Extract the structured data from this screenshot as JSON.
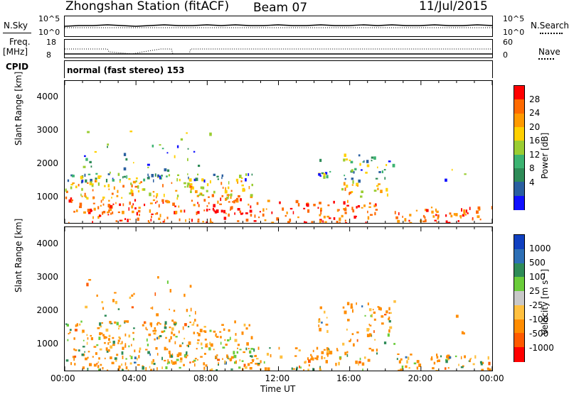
{
  "header": {
    "station": "Zhongshan Station (fitACF)",
    "beam": "Beam 07",
    "date": "11/Jul/2015"
  },
  "top_panels": {
    "nsky_label": "N.Sky",
    "nsky_ticks": [
      "10^5",
      "10^0"
    ],
    "nsearch_label": "N.Search",
    "nsearch_ticks": [
      "10^5",
      "10^0"
    ],
    "freq_label_1": "Freq.",
    "freq_label_2": "[MHz]",
    "freq_ticks": [
      "18",
      "8"
    ],
    "nave_label": "Nave",
    "nave_ticks": [
      "60",
      "0"
    ],
    "cpid_label": "CPID",
    "cpid_text": "normal (fast stereo) 153"
  },
  "chart_data": [
    {
      "type": "heatmap",
      "name": "power-panel",
      "ylabel": "Slant Range [km]",
      "xlabel": "",
      "y_ticks": [
        "4000",
        "3000",
        "2000",
        "1000"
      ],
      "ylim": [
        180,
        4500
      ],
      "xlim": [
        0,
        24
      ],
      "colorbar_label": "Power [dB]",
      "colorbar_ticks": [
        "28",
        "24",
        "20",
        "16",
        "12",
        "8",
        "4"
      ],
      "colorbar_colors": [
        "#ff0000",
        "#ff6a00",
        "#ff9a00",
        "#ffd000",
        "#9acd32",
        "#3cb371",
        "#2e8b57",
        "#2a5fa0",
        "#1010ff"
      ]
    },
    {
      "type": "heatmap",
      "name": "velocity-panel",
      "ylabel": "Slant Range [km]",
      "xlabel": "Time UT",
      "x_ticks": [
        "00:00",
        "04:00",
        "08:00",
        "12:00",
        "16:00",
        "20:00",
        "00:00"
      ],
      "y_ticks": [
        "4000",
        "3000",
        "2000",
        "1000"
      ],
      "ylim": [
        180,
        4500
      ],
      "xlim": [
        0,
        24
      ],
      "colorbar_label": "Velocity [m s⁻¹]",
      "colorbar_ticks": [
        "1000",
        "500",
        "100",
        "25",
        "-25",
        "-100",
        "-500",
        "-1000"
      ],
      "colorbar_colors": [
        "#1040c0",
        "#2d6fb5",
        "#2e8b57",
        "#6acc3a",
        "#c8c8c8",
        "#ffc040",
        "#ff8c00",
        "#ff5a00",
        "#ff0000"
      ]
    }
  ]
}
